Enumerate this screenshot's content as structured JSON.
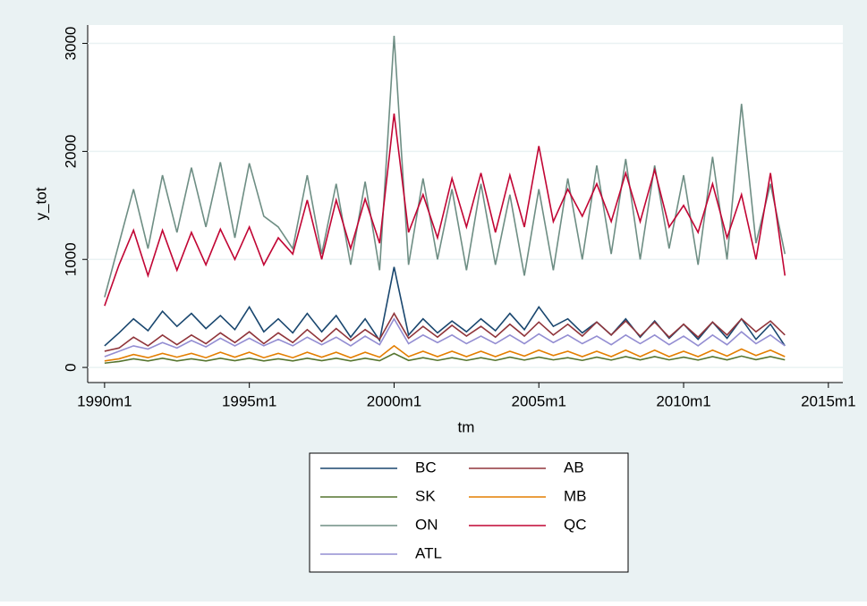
{
  "chart_data": {
    "type": "line",
    "x_label": "tm",
    "y_label": "y_tot",
    "x": [
      360,
      366,
      372,
      378,
      384,
      390,
      396,
      402,
      408,
      414,
      420,
      426,
      432,
      438,
      444,
      450,
      456,
      462,
      468,
      474,
      480,
      486,
      492,
      498,
      504,
      510,
      516,
      522,
      528,
      534,
      540,
      546,
      552,
      558,
      564,
      570,
      576,
      582,
      588,
      594,
      600,
      606,
      612,
      618,
      624,
      630,
      636,
      642
    ],
    "xlim": [
      353,
      666
    ],
    "xticks": [
      {
        "value": 360,
        "label": "1990m1"
      },
      {
        "value": 420,
        "label": "1995m1"
      },
      {
        "value": 480,
        "label": "2000m1"
      },
      {
        "value": 540,
        "label": "2005m1"
      },
      {
        "value": 600,
        "label": "2010m1"
      },
      {
        "value": 660,
        "label": "2015m1"
      }
    ],
    "ylim": [
      -140,
      3170
    ],
    "yticks": [
      0,
      1000,
      2000,
      3000
    ],
    "grid": true,
    "series": [
      {
        "name": "BC",
        "color": "#1a476f",
        "values": [
          200,
          320,
          450,
          340,
          520,
          380,
          500,
          360,
          480,
          350,
          560,
          330,
          450,
          320,
          500,
          330,
          480,
          280,
          450,
          250,
          930,
          300,
          450,
          320,
          430,
          330,
          450,
          340,
          500,
          350,
          560,
          380,
          450,
          320,
          420,
          300,
          450,
          280,
          430,
          270,
          400,
          260,
          420,
          270,
          450,
          260,
          400,
          200
        ]
      },
      {
        "name": "AB",
        "color": "#90353b",
        "values": [
          150,
          180,
          280,
          200,
          300,
          210,
          300,
          220,
          320,
          230,
          330,
          220,
          320,
          230,
          350,
          240,
          360,
          250,
          350,
          260,
          500,
          270,
          380,
          280,
          390,
          290,
          380,
          280,
          400,
          290,
          420,
          300,
          400,
          290,
          420,
          300,
          430,
          290,
          420,
          280,
          400,
          280,
          420,
          300,
          450,
          330,
          430,
          300
        ]
      },
      {
        "name": "SK",
        "color": "#55752f",
        "values": [
          40,
          55,
          80,
          60,
          85,
          60,
          80,
          60,
          85,
          62,
          85,
          60,
          80,
          60,
          85,
          62,
          85,
          60,
          85,
          62,
          130,
          65,
          90,
          65,
          90,
          65,
          90,
          65,
          95,
          68,
          95,
          70,
          90,
          65,
          95,
          68,
          100,
          70,
          100,
          70,
          95,
          68,
          100,
          70,
          105,
          72,
          100,
          70
        ]
      },
      {
        "name": "MB",
        "color": "#e37e00",
        "values": [
          60,
          80,
          120,
          90,
          130,
          95,
          130,
          90,
          140,
          95,
          140,
          90,
          130,
          90,
          140,
          95,
          140,
          90,
          140,
          95,
          200,
          100,
          150,
          100,
          150,
          100,
          150,
          100,
          150,
          105,
          160,
          110,
          150,
          100,
          150,
          100,
          160,
          100,
          160,
          100,
          150,
          100,
          160,
          105,
          170,
          110,
          160,
          100
        ]
      },
      {
        "name": "ON",
        "color": "#6e8e84",
        "values": [
          650,
          1150,
          1650,
          1100,
          1780,
          1250,
          1850,
          1300,
          1900,
          1200,
          1890,
          1400,
          1300,
          1100,
          1780,
          1050,
          1700,
          950,
          1720,
          900,
          3070,
          950,
          1750,
          1000,
          1650,
          900,
          1700,
          950,
          1600,
          850,
          1650,
          900,
          1750,
          1000,
          1870,
          1050,
          1930,
          1000,
          1870,
          1100,
          1780,
          950,
          1950,
          1000,
          2440,
          1150,
          1700,
          1050
        ]
      },
      {
        "name": "QC",
        "color": "#c10534",
        "values": [
          570,
          950,
          1270,
          850,
          1270,
          900,
          1250,
          950,
          1280,
          1000,
          1300,
          950,
          1200,
          1050,
          1550,
          1000,
          1550,
          1100,
          1560,
          1150,
          2350,
          1250,
          1600,
          1200,
          1750,
          1300,
          1800,
          1250,
          1780,
          1300,
          2050,
          1350,
          1650,
          1400,
          1700,
          1350,
          1800,
          1350,
          1830,
          1300,
          1500,
          1250,
          1700,
          1200,
          1600,
          1000,
          1800,
          850
        ]
      },
      {
        "name": "ATL",
        "color": "#938dd2",
        "values": [
          100,
          150,
          200,
          170,
          230,
          180,
          250,
          190,
          270,
          200,
          270,
          200,
          260,
          200,
          280,
          210,
          280,
          200,
          290,
          210,
          450,
          220,
          300,
          230,
          300,
          220,
          290,
          220,
          300,
          220,
          310,
          230,
          300,
          220,
          290,
          210,
          300,
          220,
          300,
          210,
          290,
          200,
          300,
          210,
          330,
          220,
          300,
          200
        ]
      }
    ]
  }
}
